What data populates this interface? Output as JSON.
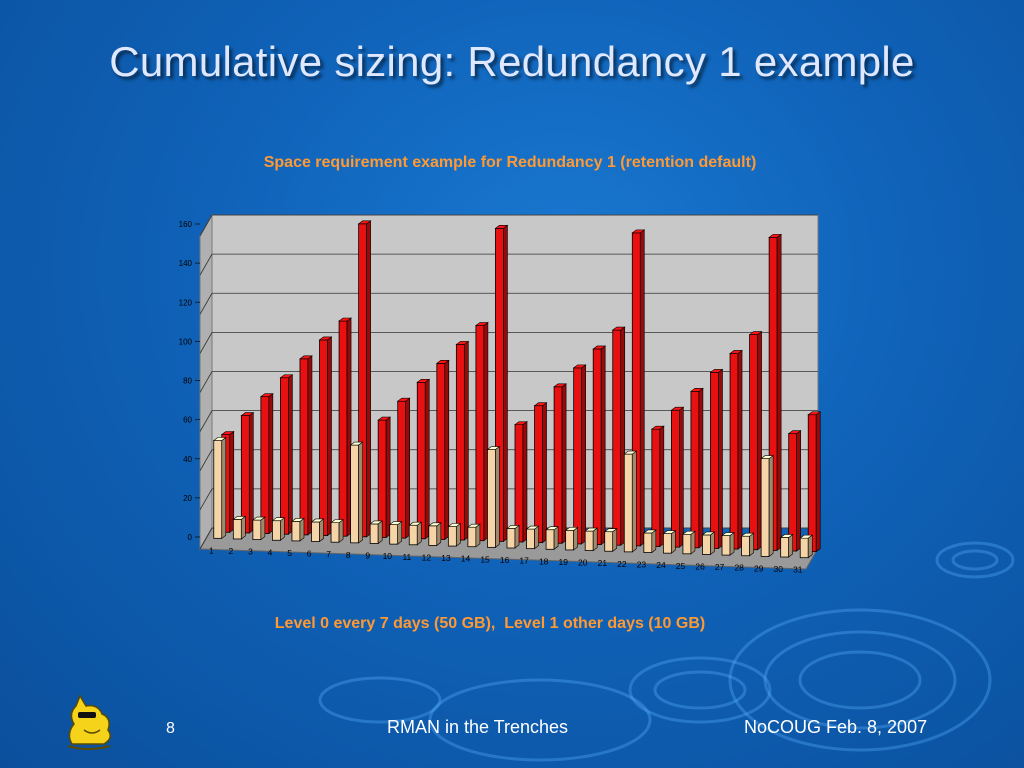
{
  "slide": {
    "title": "Cumulative sizing: Redundancy 1 example",
    "caption": "Level 0 every 7 days (50 GB),  Level 1 other days (10 GB)",
    "footer": {
      "page_number": "8",
      "center": "RMAN in the Trenches",
      "right": "NoCOUG Feb. 8, 2007"
    }
  },
  "chart_data": {
    "type": "bar",
    "title": "Space requirement example for Redundancy 1 (retention default)",
    "xlabel": "",
    "ylabel": "",
    "ylim": [
      0,
      160
    ],
    "y_ticks": [
      0,
      20,
      40,
      60,
      80,
      100,
      120,
      140,
      160
    ],
    "grid": true,
    "categories": [
      "1",
      "2",
      "3",
      "4",
      "5",
      "6",
      "7",
      "8",
      "9",
      "10",
      "11",
      "12",
      "13",
      "14",
      "15",
      "16",
      "17",
      "18",
      "19",
      "20",
      "21",
      "22",
      "23",
      "24",
      "25",
      "26",
      "27",
      "28",
      "29",
      "30",
      "31"
    ],
    "series": [
      {
        "color": "#f5d5a8",
        "values": [
          50,
          10,
          10,
          10,
          10,
          10,
          10,
          50,
          10,
          10,
          10,
          10,
          10,
          10,
          50,
          10,
          10,
          10,
          10,
          10,
          10,
          50,
          10,
          10,
          10,
          10,
          10,
          10,
          50,
          10,
          10
        ]
      },
      {
        "color": "#e81010",
        "values": [
          50,
          60,
          70,
          80,
          90,
          100,
          110,
          160,
          60,
          70,
          80,
          90,
          100,
          110,
          160,
          60,
          70,
          80,
          90,
          100,
          110,
          160,
          60,
          70,
          80,
          90,
          100,
          110,
          160,
          60,
          70
        ]
      }
    ]
  }
}
